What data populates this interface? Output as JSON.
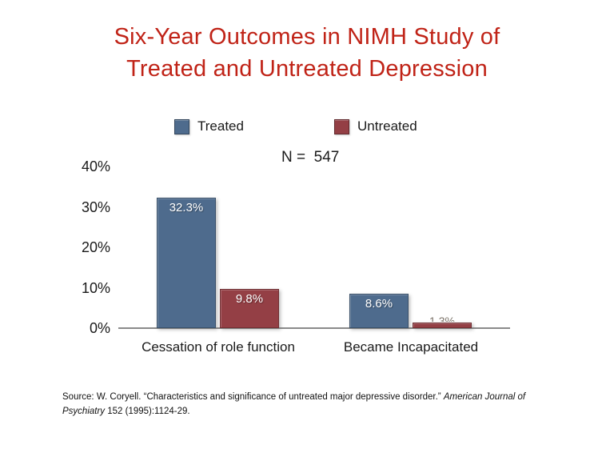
{
  "slide": {
    "title_line1": "Six-Year Outcomes in NIMH Study of",
    "title_line2": "Treated and Untreated Depression",
    "title_color": "#c02317",
    "n_label": "N =  547",
    "source": {
      "line1_regular": "Source: W. Coryell. “Characteristics and significance of untreated major depressive disorder.” ",
      "line1_italic": "American Journal of",
      "line2_italic": "Psychiatry",
      "line2_regular": " 152 (1995):1124-29."
    }
  },
  "chart_data": {
    "type": "bar",
    "title": "Six-Year Outcomes in NIMH Study of Treated and Untreated Depression",
    "sample_size_note": "N = 547",
    "categories": [
      "Cessation of role function",
      "Became Incapacitated"
    ],
    "series": [
      {
        "name": "Treated",
        "color": "#4e6b8d",
        "values": [
          32.3,
          8.6
        ],
        "labels": [
          "32.3%",
          "8.6%"
        ]
      },
      {
        "name": "Untreated",
        "color": "#943f45",
        "values": [
          9.8,
          1.3
        ],
        "labels": [
          "9.8%",
          "1.3%"
        ]
      }
    ],
    "y_ticks": [
      {
        "value": 0,
        "label": "0%"
      },
      {
        "value": 10,
        "label": "10%"
      },
      {
        "value": 20,
        "label": "20%"
      },
      {
        "value": 30,
        "label": "30%"
      },
      {
        "value": 40,
        "label": "40%"
      }
    ],
    "ylim": [
      0,
      40
    ],
    "ylabel": "",
    "xlabel": "",
    "grid": false,
    "legend_position": "top",
    "value_label_color": "#ffffff",
    "clipped_value_label_color": "#7b7268",
    "axis_line_color": "#8a8a8a"
  }
}
